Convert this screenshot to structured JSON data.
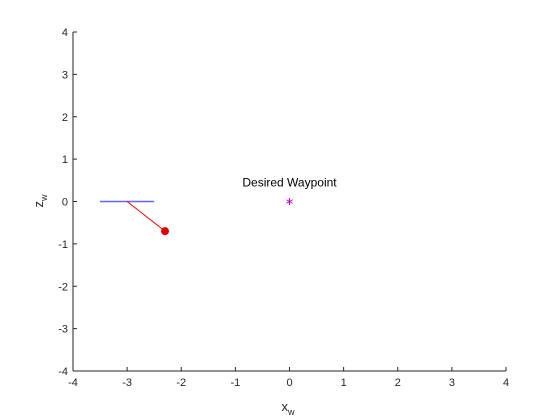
{
  "chart_data": {
    "type": "scatter",
    "xlim": [
      -4,
      4
    ],
    "ylim": [
      -4,
      4
    ],
    "grid": false,
    "box": "left-bottom axes only",
    "x_ticks": [
      -4,
      -3,
      -2,
      -1,
      0,
      1,
      2,
      3,
      4
    ],
    "y_ticks": [
      -4,
      -3,
      -2,
      -1,
      0,
      1,
      2,
      3,
      4
    ],
    "xlabel": {
      "base": "x",
      "subscript": "w"
    },
    "ylabel": {
      "base": "z",
      "subscript": "w"
    },
    "colors": {
      "axis": "#262626",
      "body_line": "#6666ff",
      "pendulum": "#e00000",
      "waypoint": "#cc00cc"
    },
    "body_segment": {
      "x": [
        -3.5,
        -2.5
      ],
      "z": [
        0,
        0
      ]
    },
    "pendulum_rod": {
      "x": [
        -3.0,
        -2.3
      ],
      "z": [
        0,
        -0.7
      ]
    },
    "pendulum_mass": {
      "x": -2.3,
      "z": -0.7,
      "marker": "filled-circle"
    },
    "waypoint": {
      "x": 0,
      "z": 0,
      "marker": "asterisk"
    },
    "annotation": {
      "text": "Desired Waypoint",
      "x": 0,
      "z": 0.45
    }
  }
}
